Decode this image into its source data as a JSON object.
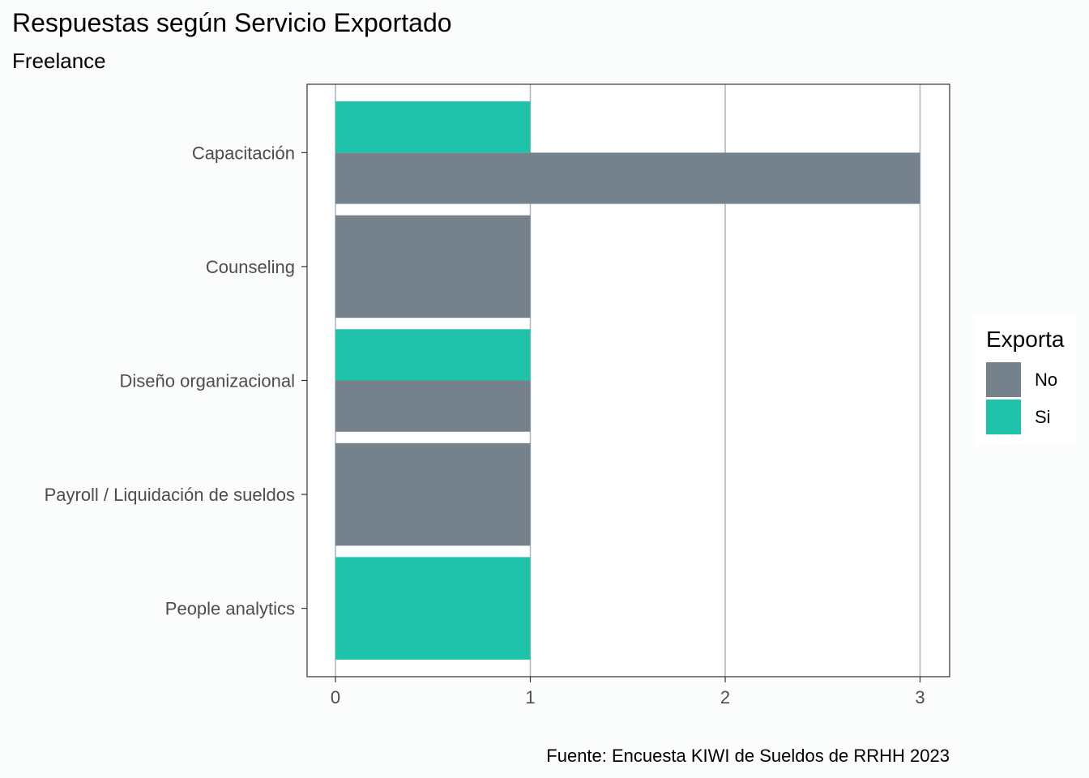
{
  "header": {
    "title": "Respuestas según Servicio Exportado",
    "subtitle": "Freelance"
  },
  "caption": "Fuente: Encuesta KIWI de Sueldos de RRHH 2023",
  "legend": {
    "title": "Exporta",
    "items": [
      {
        "label": "No",
        "color": "#75828c"
      },
      {
        "label": "Si",
        "color": "#1fc3aa"
      }
    ]
  },
  "chart_data": {
    "type": "bar",
    "orientation": "horizontal",
    "position": "dodge",
    "title": "Respuestas según Servicio Exportado",
    "subtitle": "Freelance",
    "categories": [
      "Capacitación",
      "Counseling",
      "Diseño organizacional",
      "Payroll / Liquidación de sueldos",
      "People analytics"
    ],
    "series": [
      {
        "name": "No",
        "color": "#75828c",
        "values": [
          3,
          1,
          1,
          1,
          0
        ]
      },
      {
        "name": "Si",
        "color": "#1fc3aa",
        "values": [
          1,
          0,
          1,
          0,
          1
        ]
      }
    ],
    "xlim": [
      0,
      3
    ],
    "xticks": [
      0,
      1,
      2,
      3
    ],
    "grid": true,
    "legend_position": "right"
  }
}
